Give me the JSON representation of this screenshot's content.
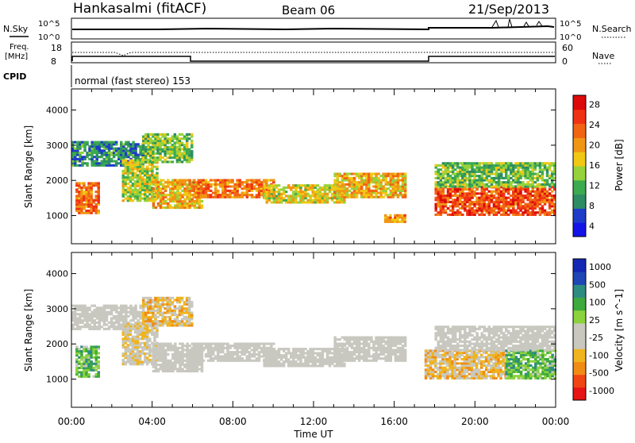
{
  "header": {
    "station": "Hankasalmi (fitACF)",
    "beam": "Beam 06",
    "date": "21/Sep/2013"
  },
  "strip_labels": {
    "nsky": "N.Sky",
    "nsearch": "N.Search",
    "freq_line1": "Freq.",
    "freq_line2": "[MHz]",
    "nave": "Nave",
    "cpid": "CPID",
    "cpid_value": "normal (fast stereo) 153"
  },
  "strip_ticks": {
    "noise_left": [
      "10^5",
      "10^0"
    ],
    "noise_right": [
      "10^5",
      "10^0"
    ],
    "freq_left": [
      "18",
      "8"
    ],
    "nave_right": [
      "60",
      "0"
    ]
  },
  "colors": {
    "power": [
      "#1414e6",
      "#1e3cc8",
      "#2d8c64",
      "#3caa50",
      "#96d23c",
      "#f0c814",
      "#f09614",
      "#f06414",
      "#f03214",
      "#dc0a0a"
    ],
    "velocity": [
      "#e61414",
      "#f04614",
      "#f08c14",
      "#f0b41e",
      "#c8c8be",
      "#c8c8be",
      "#8cd23c",
      "#3caa3c",
      "#2d8c82",
      "#1e46b4",
      "#1428b4"
    ],
    "ground_scatter": "#c8c8c0"
  },
  "chart_data": [
    {
      "type": "heatmap",
      "quantity": "Power",
      "ylabel": "Slant Range [km]",
      "ylim": [
        200,
        4600
      ],
      "yticks": [
        "4000",
        "3000",
        "2000",
        "1000"
      ],
      "xlabel": "Time UT",
      "xticks": [
        "00:00",
        "04:00",
        "08:00",
        "12:00",
        "16:00",
        "20:00",
        "00:00"
      ],
      "xlim": [
        0,
        24
      ],
      "colorbar_label": "Power [dB]",
      "colorbar_ticks": [
        "28",
        "24",
        "20",
        "16",
        "12",
        "8",
        "4"
      ],
      "colorbar_range": [
        0,
        30
      ],
      "scatter_regions": [
        {
          "t": [
            0.2,
            1.4
          ],
          "r": [
            1050,
            1900
          ],
          "v": 22
        },
        {
          "t": [
            0.0,
            3.5
          ],
          "r": [
            2400,
            3100
          ],
          "v": 8
        },
        {
          "t": [
            2.5,
            4.2
          ],
          "r": [
            1400,
            2600
          ],
          "v": 14
        },
        {
          "t": [
            3.5,
            6.0
          ],
          "r": [
            2500,
            3300
          ],
          "v": 12
        },
        {
          "t": [
            4.0,
            6.5
          ],
          "r": [
            1200,
            2000
          ],
          "v": 18
        },
        {
          "t": [
            6.0,
            10.0
          ],
          "r": [
            1500,
            2000
          ],
          "v": 22
        },
        {
          "t": [
            9.5,
            13.5
          ],
          "r": [
            1350,
            1850
          ],
          "v": 16
        },
        {
          "t": [
            13.0,
            16.5
          ],
          "r": [
            1500,
            2200
          ],
          "v": 18
        },
        {
          "t": [
            15.5,
            16.5
          ],
          "r": [
            800,
            1000
          ],
          "v": 20
        },
        {
          "t": [
            18.0,
            24.0
          ],
          "r": [
            1000,
            1800
          ],
          "v": 24
        },
        {
          "t": [
            18.0,
            24.0
          ],
          "r": [
            1800,
            2500
          ],
          "v": 12
        }
      ]
    },
    {
      "type": "heatmap",
      "quantity": "Velocity",
      "ylabel": "Slant Range [km]",
      "ylim": [
        200,
        4600
      ],
      "yticks": [
        "4000",
        "3000",
        "2000",
        "1000"
      ],
      "xlabel": "Time UT",
      "xticks": [
        "00:00",
        "04:00",
        "08:00",
        "12:00",
        "16:00",
        "20:00",
        "00:00"
      ],
      "xlim": [
        0,
        24
      ],
      "colorbar_label": "Velocity [m s^-1]",
      "colorbar_ticks": [
        "1000",
        "500",
        "100",
        "25",
        "-25",
        "-100",
        "-500",
        "-1000"
      ],
      "colorbar_range": [
        -1000,
        1000
      ],
      "scatter_regions": [
        {
          "t": [
            0.2,
            1.4
          ],
          "r": [
            1050,
            1900
          ],
          "v": 300
        },
        {
          "t": [
            0.0,
            3.5
          ],
          "r": [
            2400,
            3100
          ],
          "v": 0
        },
        {
          "t": [
            2.5,
            4.2
          ],
          "r": [
            1400,
            2600
          ],
          "v": -200
        },
        {
          "t": [
            3.5,
            6.0
          ],
          "r": [
            2500,
            3300
          ],
          "v": -300
        },
        {
          "t": [
            4.0,
            6.5
          ],
          "r": [
            1200,
            2000
          ],
          "v": 0
        },
        {
          "t": [
            6.0,
            10.0
          ],
          "r": [
            1500,
            2000
          ],
          "v": 0
        },
        {
          "t": [
            9.5,
            13.5
          ],
          "r": [
            1350,
            1850
          ],
          "v": 0
        },
        {
          "t": [
            13.0,
            16.5
          ],
          "r": [
            1500,
            2200
          ],
          "v": 0
        },
        {
          "t": [
            17.5,
            21.5
          ],
          "r": [
            1000,
            1800
          ],
          "v": -300
        },
        {
          "t": [
            21.5,
            24.0
          ],
          "r": [
            1000,
            1800
          ],
          "v": 300
        },
        {
          "t": [
            18.0,
            24.0
          ],
          "r": [
            1800,
            2500
          ],
          "v": 0
        }
      ]
    }
  ]
}
